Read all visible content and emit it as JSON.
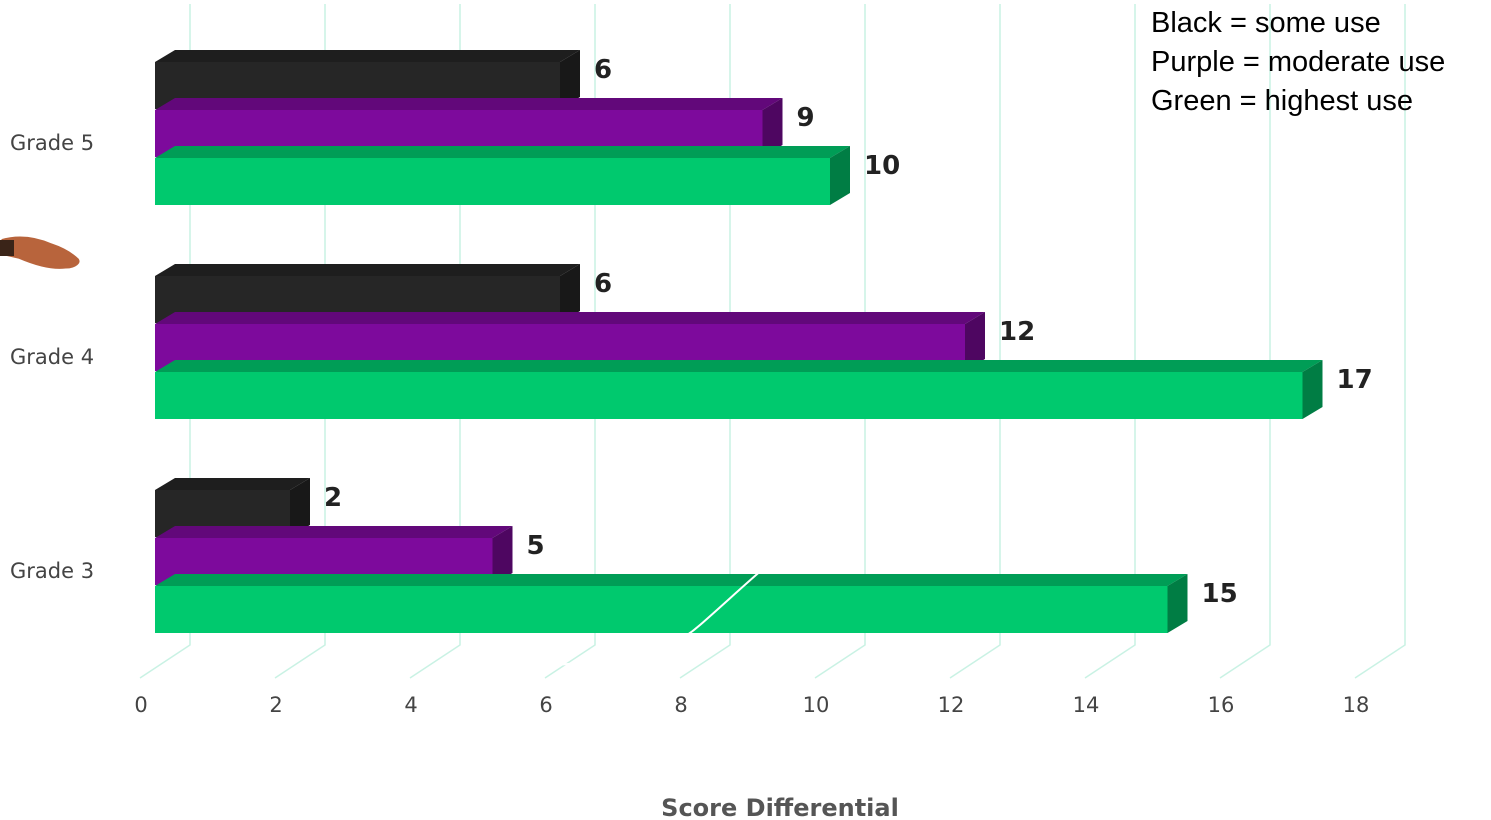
{
  "chart_data": {
    "type": "bar",
    "orientation": "horizontal",
    "categories": [
      "Grade 5",
      "Grade 4",
      "Grade 3"
    ],
    "series": [
      {
        "values": [
          6,
          6,
          2
        ],
        "color": "#262626"
      },
      {
        "values": [
          9,
          12,
          5
        ],
        "color": "#7d0a9c"
      },
      {
        "values": [
          10,
          17,
          15
        ],
        "color": "#00c96e"
      }
    ],
    "xlabel": "Score Differential",
    "ylabel": "",
    "xlim": [
      0,
      18
    ],
    "xticks": [
      0,
      2,
      4,
      6,
      8,
      10,
      12,
      14,
      16,
      18
    ],
    "grid": true,
    "style": "3d",
    "legend_note": [
      "Black = some use",
      "Purple = moderate use",
      "Green = highest use"
    ]
  }
}
